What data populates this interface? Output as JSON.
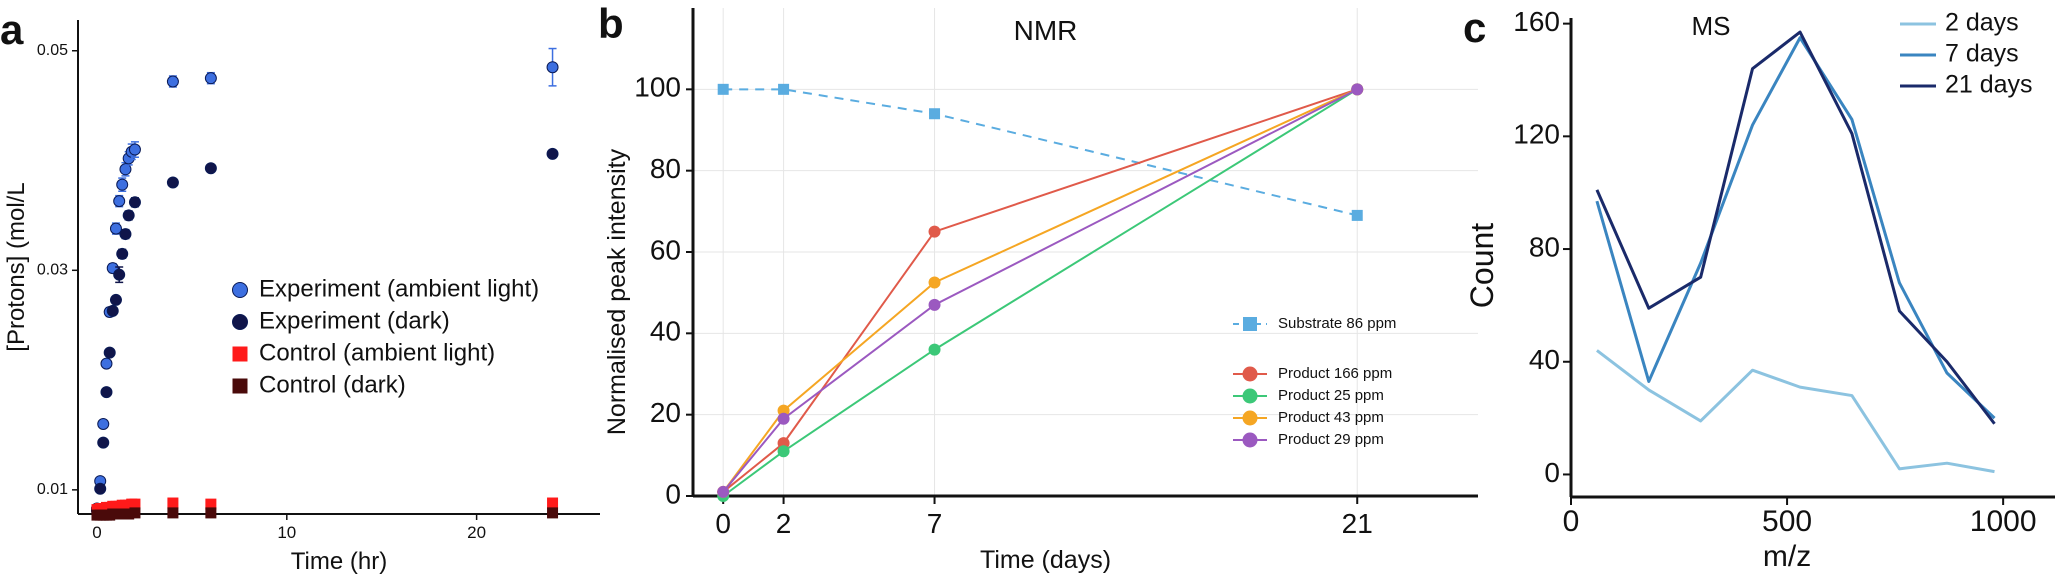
{
  "panels": {
    "a": {
      "label": "a"
    },
    "b": {
      "label": "b"
    },
    "c": {
      "label": "c"
    }
  },
  "colors": {
    "exp_light": "#3d6fe0",
    "exp_dark": "#10154a",
    "ctrl_light": "#ff1a1a",
    "ctrl_dark": "#4a0a0a",
    "substrate": "#5aace0",
    "p166": "#e05a4a",
    "p25": "#3cc878",
    "p43": "#f5a623",
    "p29": "#9b59c0",
    "ms2": "#8cc3e0",
    "ms7": "#3a85c0",
    "ms21": "#1a2a6a"
  },
  "chart_data": [
    {
      "type": "scatter",
      "panel": "a",
      "title": "",
      "xlabel": "Time (hr)",
      "ylabel": "[Protons] (mol/L",
      "xlim": [
        -1,
        26.5
      ],
      "ylim": [
        0.0078,
        0.0528
      ],
      "xticks": [
        0,
        10,
        20
      ],
      "yticks": [
        0.01,
        0.03,
        0.05
      ],
      "ytick_labels": [
        "0.01",
        "0.03",
        "0.05"
      ],
      "series": [
        {
          "name": "Experiment (ambient light)",
          "color_key": "exp_light",
          "marker": "circle",
          "x": [
            0,
            0.17,
            0.33,
            0.5,
            0.67,
            0.83,
            1.0,
            1.17,
            1.33,
            1.5,
            1.67,
            1.83,
            2.0,
            4.0,
            6.0,
            24.0
          ],
          "y": [
            0.0083,
            0.0108,
            0.016,
            0.0215,
            0.0262,
            0.0302,
            0.0338,
            0.0363,
            0.0378,
            0.0392,
            0.0402,
            0.0408,
            0.041,
            0.0472,
            0.0475,
            0.0485
          ],
          "err": [
            0.0002,
            0.0002,
            0.0003,
            0.0003,
            0.0004,
            0.0004,
            0.0005,
            0.0005,
            0.0006,
            0.0006,
            0.0006,
            0.0007,
            0.0007,
            0.0005,
            0.0005,
            0.0017
          ]
        },
        {
          "name": "Experiment (dark)",
          "color_key": "exp_dark",
          "marker": "circle",
          "x": [
            0,
            0.17,
            0.33,
            0.5,
            0.67,
            0.83,
            1.0,
            1.17,
            1.33,
            1.5,
            1.67,
            2.0,
            4.0,
            6.0,
            24.0
          ],
          "y": [
            0.0081,
            0.0101,
            0.0143,
            0.0189,
            0.0225,
            0.0263,
            0.0273,
            0.0296,
            0.0315,
            0.0333,
            0.035,
            0.0362,
            0.038,
            0.0393,
            0.0406
          ],
          "err": [
            0.0002,
            0.0002,
            0.0002,
            0.0003,
            0.0003,
            0.0003,
            0.0003,
            0.0007,
            0.0004,
            0.0004,
            0.0004,
            0.0004,
            0.0003,
            0.0003,
            0.0003
          ]
        },
        {
          "name": "Control (ambient light)",
          "color_key": "ctrl_light",
          "marker": "square",
          "x": [
            0,
            0.17,
            0.33,
            0.5,
            0.67,
            0.83,
            1.0,
            1.17,
            1.33,
            1.5,
            1.67,
            1.83,
            2.0,
            4.0,
            6.0,
            24.0
          ],
          "y": [
            0.0082,
            0.0083,
            0.0083,
            0.0084,
            0.0084,
            0.0085,
            0.0085,
            0.0085,
            0.0086,
            0.0086,
            0.0086,
            0.0087,
            0.0087,
            0.0088,
            0.0087,
            0.0088
          ],
          "err": [
            0,
            0,
            0,
            0,
            0,
            0,
            0,
            0,
            0,
            0,
            0,
            0,
            0,
            0,
            0,
            0.0003
          ]
        },
        {
          "name": "Control (dark)",
          "color_key": "ctrl_dark",
          "marker": "square",
          "x": [
            0,
            0.17,
            0.33,
            0.5,
            0.67,
            0.83,
            1.0,
            1.17,
            1.33,
            1.5,
            1.67,
            2.0,
            4.0,
            6.0,
            24.0
          ],
          "y": [
            0.0077,
            0.0077,
            0.0077,
            0.0077,
            0.0077,
            0.0078,
            0.0078,
            0.0078,
            0.0078,
            0.0078,
            0.0078,
            0.0079,
            0.0079,
            0.0079,
            0.0079
          ],
          "err": [
            0,
            0,
            0,
            0,
            0,
            0,
            0,
            0,
            0,
            0,
            0,
            0,
            0,
            0,
            0
          ]
        }
      ],
      "legend": {
        "placement": "center-right",
        "entries": [
          "Experiment (ambient light)",
          "Experiment (dark)",
          "Control (ambient light)",
          "Control (dark)"
        ]
      }
    },
    {
      "type": "line",
      "panel": "b",
      "title": "NMR",
      "xlabel": "Time (days)",
      "ylabel": "Normalised peak intensity",
      "xlim": [
        -1,
        25
      ],
      "ylim": [
        0,
        120
      ],
      "xticks": [
        0,
        2,
        7,
        21
      ],
      "yticks": [
        0,
        20,
        40,
        60,
        80,
        100
      ],
      "grid": true,
      "x": [
        0,
        2,
        7,
        21
      ],
      "series": [
        {
          "name": "Substrate 86 ppm",
          "color_key": "substrate",
          "marker": "square",
          "dashed": true,
          "values": [
            100,
            100,
            94,
            69
          ]
        },
        {
          "name": "Product 166 ppm",
          "color_key": "p166",
          "marker": "circle",
          "dashed": false,
          "values": [
            1,
            13,
            65,
            100
          ]
        },
        {
          "name": "Product 25 ppm",
          "color_key": "p25",
          "marker": "circle",
          "dashed": false,
          "values": [
            0,
            11,
            36,
            100
          ]
        },
        {
          "name": "Product 43 ppm",
          "color_key": "p43",
          "marker": "circle",
          "dashed": false,
          "values": [
            1,
            21,
            52.5,
            100
          ]
        },
        {
          "name": "Product 29 ppm",
          "color_key": "p29",
          "marker": "circle",
          "dashed": false,
          "values": [
            1,
            19,
            47,
            100
          ]
        }
      ],
      "legend": {
        "placement": "lower-right"
      }
    },
    {
      "type": "line",
      "panel": "c",
      "title": "MS",
      "xlabel": "m/z",
      "ylabel": "Count",
      "xlim": [
        0,
        1120
      ],
      "ylim": [
        -8,
        162
      ],
      "xticks": [
        0,
        500,
        1000
      ],
      "yticks": [
        0,
        40,
        80,
        120,
        160
      ],
      "series": [
        {
          "name": "2 days",
          "color_key": "ms2",
          "x": [
            60,
            180,
            300,
            420,
            530,
            650,
            760,
            870,
            980
          ],
          "values": [
            44,
            30,
            19,
            37,
            31,
            28,
            2,
            4,
            1
          ]
        },
        {
          "name": "7 days",
          "color_key": "ms7",
          "x": [
            60,
            180,
            300,
            420,
            530,
            650,
            760,
            870,
            980
          ],
          "values": [
            97,
            33,
            75,
            124,
            155,
            126,
            68,
            36,
            20
          ]
        },
        {
          "name": "21 days",
          "color_key": "ms21",
          "x": [
            60,
            180,
            300,
            420,
            530,
            650,
            760,
            870,
            980
          ],
          "values": [
            101,
            59,
            70,
            144,
            157,
            121,
            58,
            40,
            18
          ]
        }
      ],
      "legend": {
        "placement": "top-right"
      }
    }
  ]
}
